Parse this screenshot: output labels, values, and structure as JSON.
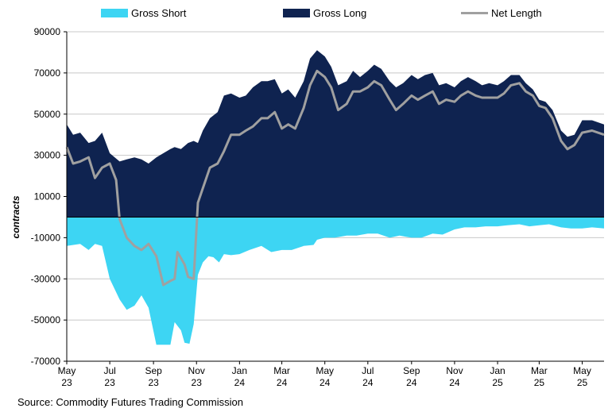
{
  "chart_data": {
    "type": "area",
    "ylabel": "contracts",
    "ylim": [
      -70000,
      90000
    ],
    "yticks": [
      90000,
      70000,
      50000,
      30000,
      10000,
      -10000,
      -30000,
      -50000,
      -70000
    ],
    "xlim": [
      "2023-05-01",
      "2025-06-01"
    ],
    "xtick_labels": [
      {
        "date": "2023-05-01",
        "line1": "May",
        "line2": "23"
      },
      {
        "date": "2023-07-01",
        "line1": "Jul",
        "line2": "23"
      },
      {
        "date": "2023-09-01",
        "line1": "Sep",
        "line2": "23"
      },
      {
        "date": "2023-11-01",
        "line1": "Nov",
        "line2": "23"
      },
      {
        "date": "2024-01-01",
        "line1": "Jan",
        "line2": "24"
      },
      {
        "date": "2024-03-01",
        "line1": "Mar",
        "line2": "24"
      },
      {
        "date": "2024-05-01",
        "line1": "May",
        "line2": "24"
      },
      {
        "date": "2024-07-01",
        "line1": "Jul",
        "line2": "24"
      },
      {
        "date": "2024-09-01",
        "line1": "Sep",
        "line2": "24"
      },
      {
        "date": "2024-11-01",
        "line1": "Nov",
        "line2": "24"
      },
      {
        "date": "2025-01-01",
        "line1": "Jan",
        "line2": "25"
      },
      {
        "date": "2025-03-01",
        "line1": "Mar",
        "line2": "25"
      },
      {
        "date": "2025-05-01",
        "line1": "May",
        "line2": "25"
      }
    ],
    "grid": "horizontal",
    "legend_placement": "top",
    "source": "Source: Commodity Futures Trading Commission",
    "series": [
      {
        "name": "Gross Short",
        "color": "#3dd5f3",
        "points": [
          [
            "2023-05-01",
            -14000
          ],
          [
            "2023-05-20",
            -13000
          ],
          [
            "2023-06-01",
            -16000
          ],
          [
            "2023-06-10",
            -13000
          ],
          [
            "2023-06-20",
            -14000
          ],
          [
            "2023-07-01",
            -30000
          ],
          [
            "2023-07-15",
            -40000
          ],
          [
            "2023-07-25",
            -45000
          ],
          [
            "2023-08-05",
            -43000
          ],
          [
            "2023-08-15",
            -38000
          ],
          [
            "2023-08-25",
            -44000
          ],
          [
            "2023-09-05",
            -62000
          ],
          [
            "2023-09-15",
            -62000
          ],
          [
            "2023-09-25",
            -62000
          ],
          [
            "2023-10-01",
            -51000
          ],
          [
            "2023-10-10",
            -55000
          ],
          [
            "2023-10-15",
            -61000
          ],
          [
            "2023-10-22",
            -61500
          ],
          [
            "2023-10-28",
            -52000
          ],
          [
            "2023-11-03",
            -28000
          ],
          [
            "2023-11-10",
            -22000
          ],
          [
            "2023-11-18",
            -19000
          ],
          [
            "2023-11-25",
            -19500
          ],
          [
            "2023-12-03",
            -22000
          ],
          [
            "2023-12-10",
            -18000
          ],
          [
            "2023-12-20",
            -18500
          ],
          [
            "2024-01-01",
            -18000
          ],
          [
            "2024-01-15",
            -16000
          ],
          [
            "2024-02-01",
            -14000
          ],
          [
            "2024-02-15",
            -17000
          ],
          [
            "2024-03-01",
            -16000
          ],
          [
            "2024-03-15",
            -16000
          ],
          [
            "2024-04-01",
            -14000
          ],
          [
            "2024-04-15",
            -13500
          ],
          [
            "2024-04-20",
            -11000
          ],
          [
            "2024-05-01",
            -10000
          ],
          [
            "2024-05-15",
            -10000
          ],
          [
            "2024-06-01",
            -9000
          ],
          [
            "2024-06-15",
            -9000
          ],
          [
            "2024-07-01",
            -8000
          ],
          [
            "2024-07-15",
            -8000
          ],
          [
            "2024-08-01",
            -10000
          ],
          [
            "2024-08-15",
            -9000
          ],
          [
            "2024-09-01",
            -10000
          ],
          [
            "2024-09-15",
            -10000
          ],
          [
            "2024-10-01",
            -8000
          ],
          [
            "2024-10-15",
            -8500
          ],
          [
            "2024-11-01",
            -6000
          ],
          [
            "2024-11-15",
            -5000
          ],
          [
            "2024-12-01",
            -5000
          ],
          [
            "2024-12-15",
            -4500
          ],
          [
            "2025-01-01",
            -4500
          ],
          [
            "2025-01-15",
            -4000
          ],
          [
            "2025-02-01",
            -3500
          ],
          [
            "2025-02-15",
            -4500
          ],
          [
            "2025-03-01",
            -4000
          ],
          [
            "2025-03-15",
            -3500
          ],
          [
            "2025-04-01",
            -5000
          ],
          [
            "2025-04-15",
            -5500
          ],
          [
            "2025-05-01",
            -5500
          ],
          [
            "2025-05-15",
            -5000
          ],
          [
            "2025-06-01",
            -5500
          ]
        ]
      },
      {
        "name": "Gross Long",
        "color": "#0f2350",
        "points": [
          [
            "2023-05-01",
            45000
          ],
          [
            "2023-05-10",
            40000
          ],
          [
            "2023-05-20",
            41000
          ],
          [
            "2023-06-01",
            36000
          ],
          [
            "2023-06-10",
            37000
          ],
          [
            "2023-06-20",
            41000
          ],
          [
            "2023-07-01",
            31000
          ],
          [
            "2023-07-15",
            27000
          ],
          [
            "2023-07-25",
            28000
          ],
          [
            "2023-08-05",
            29000
          ],
          [
            "2023-08-15",
            28000
          ],
          [
            "2023-08-25",
            26000
          ],
          [
            "2023-09-05",
            29000
          ],
          [
            "2023-09-15",
            31000
          ],
          [
            "2023-09-25",
            33000
          ],
          [
            "2023-10-01",
            34000
          ],
          [
            "2023-10-10",
            33000
          ],
          [
            "2023-10-20",
            36000
          ],
          [
            "2023-10-28",
            37000
          ],
          [
            "2023-11-03",
            36000
          ],
          [
            "2023-11-10",
            42000
          ],
          [
            "2023-11-20",
            48000
          ],
          [
            "2023-12-01",
            51000
          ],
          [
            "2023-12-10",
            59000
          ],
          [
            "2023-12-20",
            60000
          ],
          [
            "2024-01-01",
            58000
          ],
          [
            "2024-01-10",
            59000
          ],
          [
            "2024-01-20",
            63000
          ],
          [
            "2024-02-01",
            66000
          ],
          [
            "2024-02-10",
            66000
          ],
          [
            "2024-02-20",
            67000
          ],
          [
            "2024-03-01",
            60000
          ],
          [
            "2024-03-10",
            62000
          ],
          [
            "2024-03-20",
            58000
          ],
          [
            "2024-04-01",
            66000
          ],
          [
            "2024-04-10",
            77000
          ],
          [
            "2024-04-20",
            81000
          ],
          [
            "2024-05-01",
            78000
          ],
          [
            "2024-05-10",
            73000
          ],
          [
            "2024-05-20",
            64000
          ],
          [
            "2024-06-01",
            66000
          ],
          [
            "2024-06-10",
            71000
          ],
          [
            "2024-06-20",
            68000
          ],
          [
            "2024-07-01",
            71000
          ],
          [
            "2024-07-10",
            74000
          ],
          [
            "2024-07-20",
            72000
          ],
          [
            "2024-08-01",
            66000
          ],
          [
            "2024-08-10",
            63000
          ],
          [
            "2024-08-20",
            65000
          ],
          [
            "2024-09-01",
            69000
          ],
          [
            "2024-09-10",
            67000
          ],
          [
            "2024-09-20",
            69000
          ],
          [
            "2024-10-01",
            70000
          ],
          [
            "2024-10-10",
            64000
          ],
          [
            "2024-10-20",
            65000
          ],
          [
            "2024-11-01",
            63000
          ],
          [
            "2024-11-10",
            66000
          ],
          [
            "2024-11-20",
            68000
          ],
          [
            "2024-12-01",
            66000
          ],
          [
            "2024-12-10",
            64000
          ],
          [
            "2024-12-20",
            65000
          ],
          [
            "2025-01-01",
            64000
          ],
          [
            "2025-01-10",
            66000
          ],
          [
            "2025-01-20",
            69000
          ],
          [
            "2025-02-01",
            69000
          ],
          [
            "2025-02-10",
            65000
          ],
          [
            "2025-02-20",
            62000
          ],
          [
            "2025-03-01",
            57000
          ],
          [
            "2025-03-10",
            56000
          ],
          [
            "2025-03-20",
            52000
          ],
          [
            "2025-04-01",
            42000
          ],
          [
            "2025-04-10",
            39000
          ],
          [
            "2025-04-20",
            40000
          ],
          [
            "2025-05-01",
            47000
          ],
          [
            "2025-05-15",
            47000
          ],
          [
            "2025-06-01",
            45000
          ]
        ]
      },
      {
        "name": "Net Length",
        "color": "#a0a0a0",
        "points": [
          [
            "2023-05-01",
            34000
          ],
          [
            "2023-05-10",
            26000
          ],
          [
            "2023-05-20",
            27000
          ],
          [
            "2023-06-01",
            29000
          ],
          [
            "2023-06-10",
            19000
          ],
          [
            "2023-06-20",
            24000
          ],
          [
            "2023-07-01",
            26000
          ],
          [
            "2023-07-10",
            18000
          ],
          [
            "2023-07-15",
            -1000
          ],
          [
            "2023-07-25",
            -10000
          ],
          [
            "2023-08-05",
            -14000
          ],
          [
            "2023-08-15",
            -16000
          ],
          [
            "2023-08-25",
            -13000
          ],
          [
            "2023-09-05",
            -19000
          ],
          [
            "2023-09-15",
            -33000
          ],
          [
            "2023-09-25",
            -31000
          ],
          [
            "2023-10-01",
            -30000
          ],
          [
            "2023-10-05",
            -17000
          ],
          [
            "2023-10-15",
            -23000
          ],
          [
            "2023-10-20",
            -29000
          ],
          [
            "2023-10-28",
            -30000
          ],
          [
            "2023-11-03",
            7000
          ],
          [
            "2023-11-10",
            14000
          ],
          [
            "2023-11-20",
            24000
          ],
          [
            "2023-12-01",
            26000
          ],
          [
            "2023-12-10",
            32000
          ],
          [
            "2023-12-20",
            40000
          ],
          [
            "2024-01-01",
            40000
          ],
          [
            "2024-01-10",
            42000
          ],
          [
            "2024-01-20",
            44000
          ],
          [
            "2024-02-01",
            48000
          ],
          [
            "2024-02-10",
            48000
          ],
          [
            "2024-02-20",
            51000
          ],
          [
            "2024-03-01",
            43000
          ],
          [
            "2024-03-10",
            45000
          ],
          [
            "2024-03-20",
            43000
          ],
          [
            "2024-04-01",
            53000
          ],
          [
            "2024-04-10",
            64000
          ],
          [
            "2024-04-20",
            71000
          ],
          [
            "2024-05-01",
            68000
          ],
          [
            "2024-05-10",
            63000
          ],
          [
            "2024-05-20",
            52000
          ],
          [
            "2024-06-01",
            55000
          ],
          [
            "2024-06-10",
            61000
          ],
          [
            "2024-06-20",
            61000
          ],
          [
            "2024-07-01",
            63000
          ],
          [
            "2024-07-10",
            66000
          ],
          [
            "2024-07-20",
            64000
          ],
          [
            "2024-08-01",
            57000
          ],
          [
            "2024-08-10",
            52000
          ],
          [
            "2024-08-20",
            55000
          ],
          [
            "2024-09-01",
            59000
          ],
          [
            "2024-09-10",
            57000
          ],
          [
            "2024-09-20",
            59000
          ],
          [
            "2024-10-01",
            61000
          ],
          [
            "2024-10-10",
            55000
          ],
          [
            "2024-10-20",
            57000
          ],
          [
            "2024-11-01",
            56000
          ],
          [
            "2024-11-10",
            59000
          ],
          [
            "2024-11-20",
            61000
          ],
          [
            "2024-12-01",
            59000
          ],
          [
            "2024-12-10",
            58000
          ],
          [
            "2024-12-20",
            58000
          ],
          [
            "2025-01-01",
            58000
          ],
          [
            "2025-01-10",
            60000
          ],
          [
            "2025-01-20",
            64000
          ],
          [
            "2025-02-01",
            65000
          ],
          [
            "2025-02-10",
            61000
          ],
          [
            "2025-02-20",
            59000
          ],
          [
            "2025-03-01",
            54000
          ],
          [
            "2025-03-10",
            53000
          ],
          [
            "2025-03-20",
            48000
          ],
          [
            "2025-04-01",
            37000
          ],
          [
            "2025-04-10",
            33000
          ],
          [
            "2025-04-20",
            35000
          ],
          [
            "2025-05-01",
            41000
          ],
          [
            "2025-05-15",
            42000
          ],
          [
            "2025-06-01",
            40000
          ]
        ]
      }
    ]
  }
}
